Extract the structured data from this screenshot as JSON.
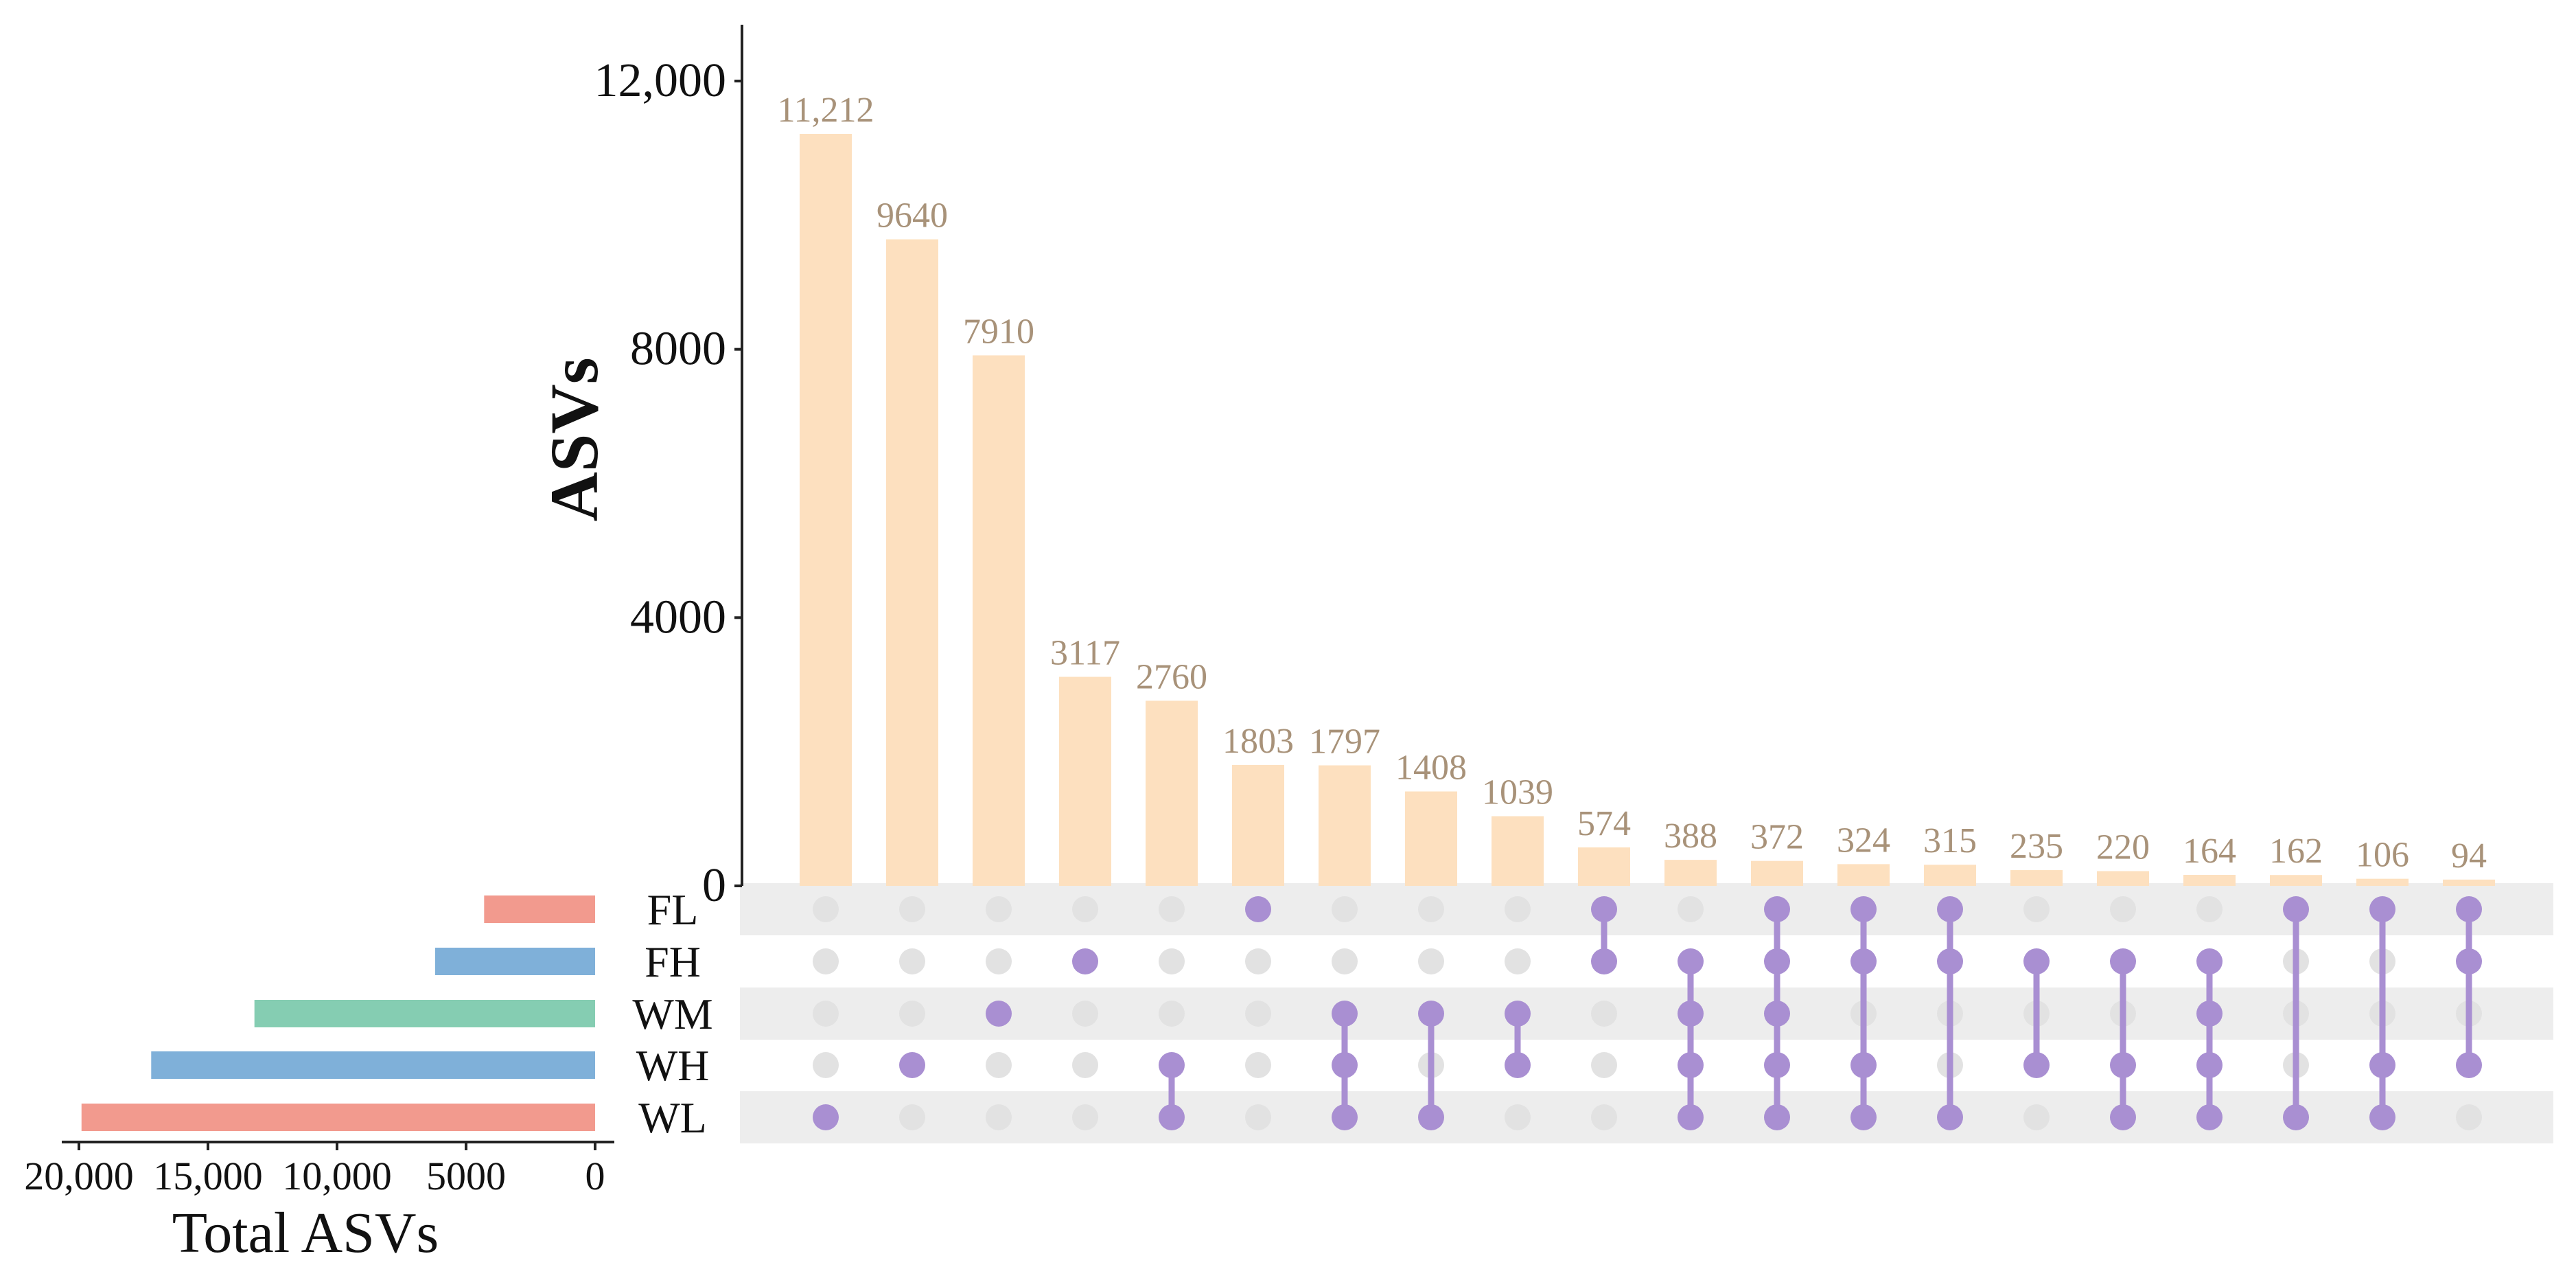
{
  "chart_data": {
    "type": "bar",
    "subtype": "upset",
    "ylabel": "ASVs",
    "xlabel_sets": "Total ASVs",
    "y_ticks": [
      "0",
      "4000",
      "8000",
      "12,000"
    ],
    "ylim": [
      0,
      13000
    ],
    "x_ticks_sets": [
      "20,000",
      "15,000",
      "10,000",
      "5000",
      "0"
    ],
    "sets_xlim": [
      0,
      20000
    ],
    "sets": [
      {
        "name": "FL",
        "total": 4300,
        "color": "#f29a8e"
      },
      {
        "name": "FH",
        "total": 6200,
        "color": "#7fb0d9"
      },
      {
        "name": "WM",
        "total": 13200,
        "color": "#85cdb2"
      },
      {
        "name": "WH",
        "total": 17200,
        "color": "#7fb0d9"
      },
      {
        "name": "WL",
        "total": 19900,
        "color": "#f29a8e"
      }
    ],
    "intersections": [
      {
        "value": 11212,
        "label": "11,212",
        "members": [
          "WL"
        ]
      },
      {
        "value": 9640,
        "label": "9640",
        "members": [
          "WH"
        ]
      },
      {
        "value": 7910,
        "label": "7910",
        "members": [
          "WM"
        ]
      },
      {
        "value": 3117,
        "label": "3117",
        "members": [
          "FH"
        ]
      },
      {
        "value": 2760,
        "label": "2760",
        "members": [
          "WH",
          "WL"
        ]
      },
      {
        "value": 1803,
        "label": "1803",
        "members": [
          "FL"
        ]
      },
      {
        "value": 1797,
        "label": "1797",
        "members": [
          "WM",
          "WH",
          "WL"
        ]
      },
      {
        "value": 1408,
        "label": "1408",
        "members": [
          "WM",
          "WL"
        ]
      },
      {
        "value": 1039,
        "label": "1039",
        "members": [
          "WM",
          "WH"
        ]
      },
      {
        "value": 574,
        "label": "574",
        "members": [
          "FL",
          "FH"
        ]
      },
      {
        "value": 388,
        "label": "388",
        "members": [
          "FH",
          "WM",
          "WH",
          "WL"
        ]
      },
      {
        "value": 372,
        "label": "372",
        "members": [
          "FL",
          "FH",
          "WM",
          "WH",
          "WL"
        ]
      },
      {
        "value": 324,
        "label": "324",
        "members": [
          "FL",
          "FH",
          "WH",
          "WL"
        ]
      },
      {
        "value": 315,
        "label": "315",
        "members": [
          "FL",
          "FH",
          "WL"
        ]
      },
      {
        "value": 235,
        "label": "235",
        "members": [
          "FH",
          "WH"
        ]
      },
      {
        "value": 220,
        "label": "220",
        "members": [
          "FH",
          "WH",
          "WL"
        ]
      },
      {
        "value": 164,
        "label": "164",
        "members": [
          "FH",
          "WM",
          "WH",
          "WL"
        ]
      },
      {
        "value": 162,
        "label": "162",
        "members": [
          "FL",
          "WL"
        ]
      },
      {
        "value": 106,
        "label": "106",
        "members": [
          "FL",
          "WH",
          "WL"
        ]
      },
      {
        "value": 94,
        "label": "94",
        "members": [
          "FL",
          "FH",
          "WH"
        ]
      }
    ],
    "colors": {
      "bar": "#fde0bf",
      "bar_label": "#a89279",
      "dot_active": "#a98fd2",
      "dot_inactive": "#e2e2e2",
      "stripe": "#ededed",
      "axis": "#222222"
    }
  }
}
